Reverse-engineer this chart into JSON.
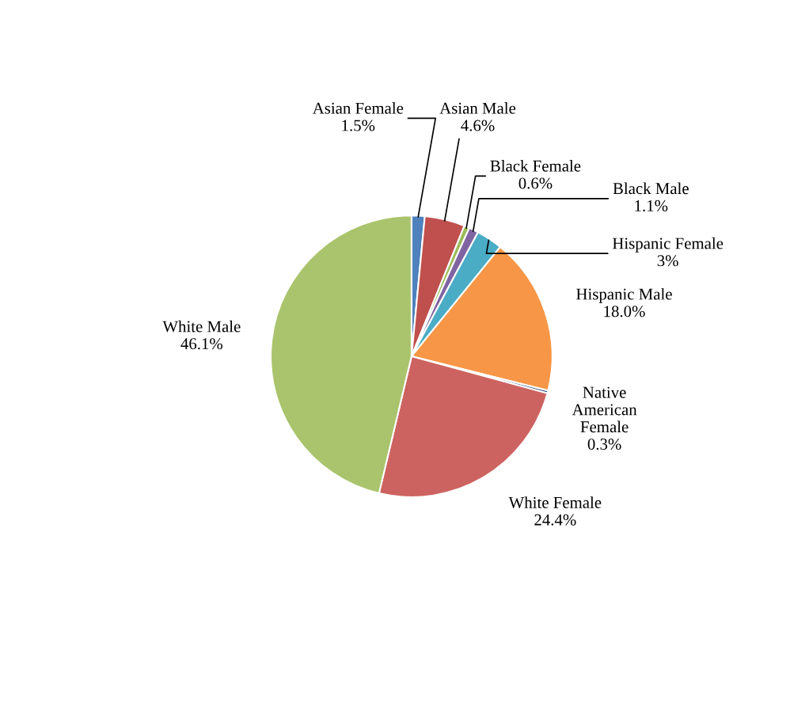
{
  "chart_data": {
    "type": "pie",
    "categories": [
      "Asian Female",
      "Asian Male",
      "Black Female",
      "Black Male",
      "Hispanic Female",
      "Hispanic Male",
      "Native American Female",
      "White Female",
      "White Male"
    ],
    "values": [
      1.5,
      4.6,
      0.6,
      1.1,
      3,
      18.0,
      0.3,
      24.4,
      46.1
    ],
    "value_labels": [
      "1.5%",
      "4.6%",
      "0.6%",
      "1.1%",
      "3%",
      "18.0%",
      "0.3%",
      "24.4%",
      "46.1%"
    ],
    "colors": [
      "#4f81bd",
      "#c0504d",
      "#9bbb59",
      "#8064a2",
      "#4bacc6",
      "#f79646",
      "#2c4d75",
      "#cd6360",
      "#a9c46c"
    ]
  }
}
